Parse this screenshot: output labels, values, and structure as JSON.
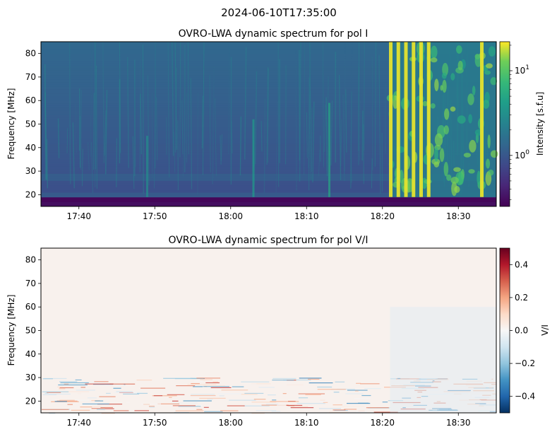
{
  "suptitle": "2024-06-10T17:35:00",
  "chart_data": [
    {
      "type": "heatmap",
      "title": "OVRO-LWA dynamic spectrum for pol I",
      "xlabel": "",
      "ylabel": "Frequency [MHz]",
      "x_ticks": [
        "17:40",
        "17:50",
        "18:00",
        "18:10",
        "18:20",
        "18:30"
      ],
      "x_range": [
        "17:35",
        "18:35"
      ],
      "y_ticks": [
        20,
        30,
        40,
        50,
        60,
        70,
        80
      ],
      "ylim": [
        15,
        85
      ],
      "colormap": "viridis",
      "colorbar": {
        "label": "Intensity [s.f.u]",
        "scale": "log",
        "range": [
          0.25,
          22
        ],
        "ticks": [
          {
            "base": "10",
            "exp": "0",
            "value": 1
          },
          {
            "base": "10",
            "exp": "1",
            "value": 10
          }
        ]
      },
      "features": {
        "background_level": 0.9,
        "low_freq_cutoff_mhz": 19,
        "vertical_bursts_at": [
          "17:49",
          "18:03",
          "18:13",
          "18:21",
          "18:22",
          "18:23",
          "18:24",
          "18:25",
          "18:26",
          "18:33"
        ],
        "storm_interval": [
          "18:21",
          "18:35"
        ],
        "peak_level": 20
      }
    },
    {
      "type": "heatmap",
      "title": "OVRO-LWA dynamic spectrum for pol V/I",
      "xlabel": "",
      "ylabel": "Frequency [MHz]",
      "x_ticks": [
        "17:40",
        "17:50",
        "18:00",
        "18:10",
        "18:20",
        "18:30"
      ],
      "x_range": [
        "17:35",
        "18:35"
      ],
      "y_ticks": [
        20,
        30,
        40,
        50,
        60,
        70,
        80
      ],
      "ylim": [
        15,
        85
      ],
      "colormap": "RdBu_r",
      "colorbar": {
        "label": "V/I",
        "scale": "linear",
        "range": [
          -0.5,
          0.5
        ],
        "ticks": [
          "−0.4",
          "−0.2",
          "0.0",
          "0.2",
          "0.4"
        ],
        "tick_values": [
          -0.4,
          -0.2,
          0.0,
          0.2,
          0.4
        ]
      },
      "features": {
        "background_level": 0.0,
        "noisy_band_mhz": [
          15,
          30
        ]
      }
    }
  ]
}
